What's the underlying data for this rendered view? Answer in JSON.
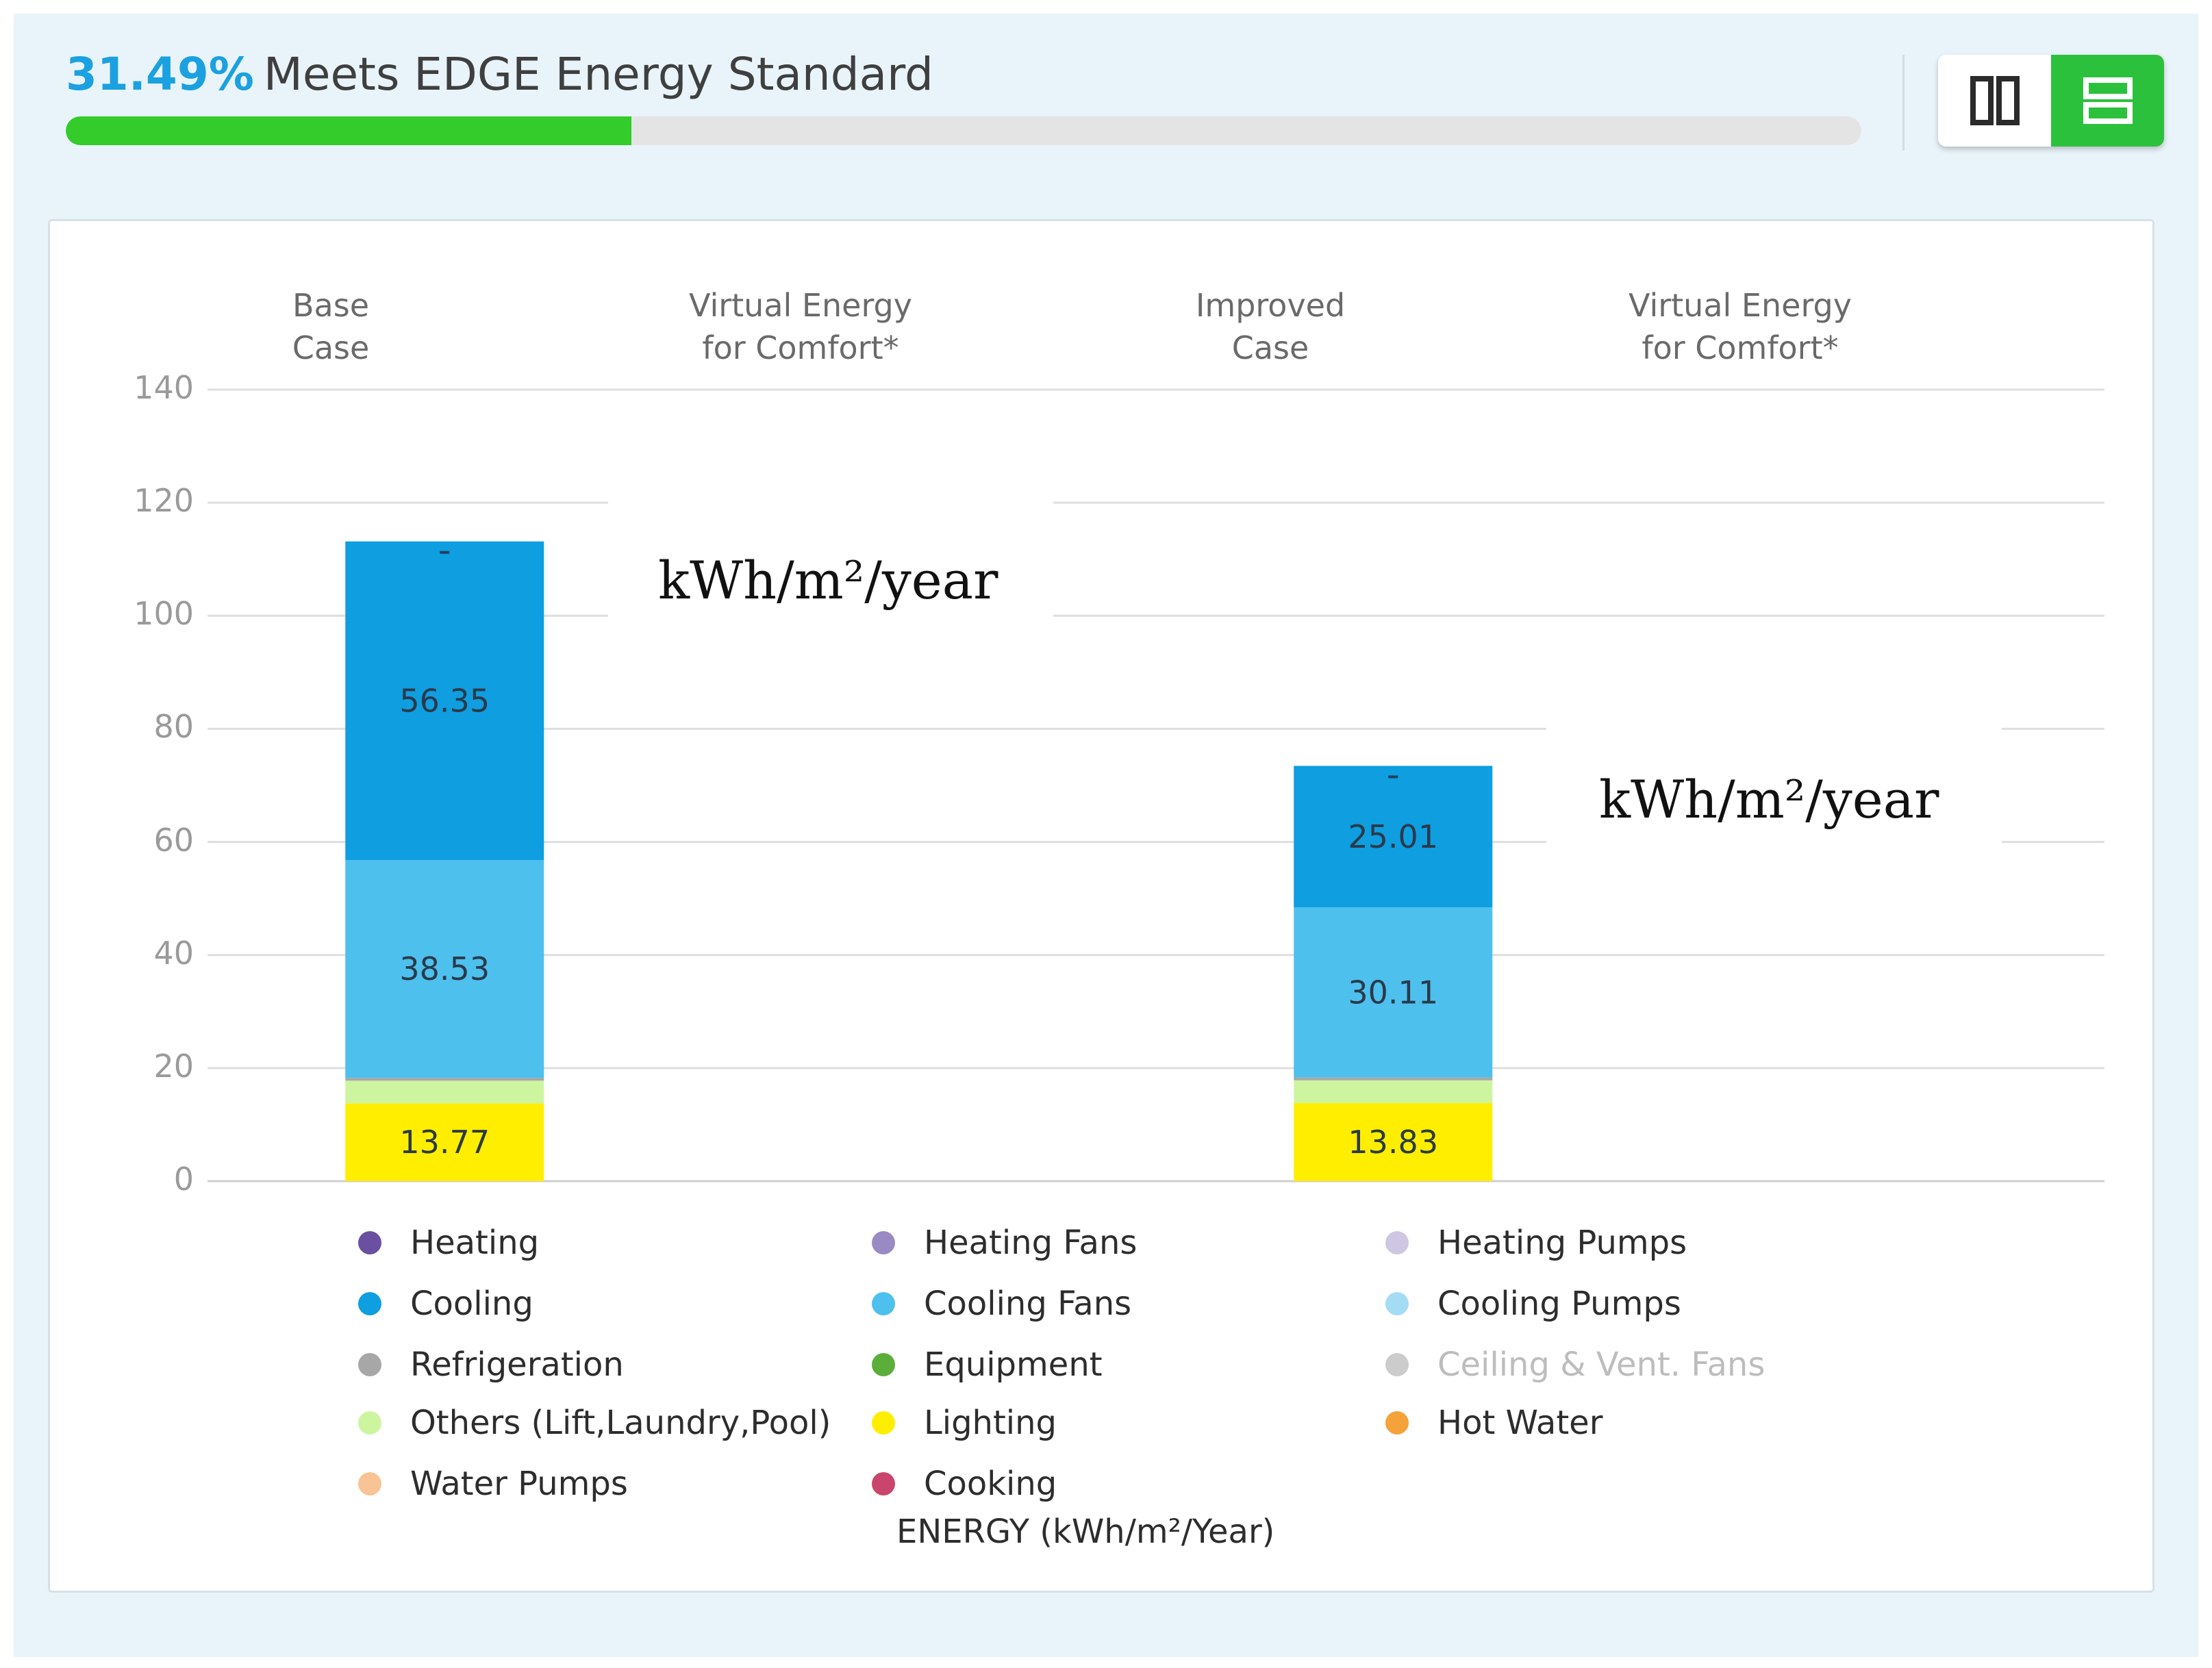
{
  "header": {
    "percent": "31.49%",
    "title": "Meets EDGE Energy Standard",
    "progress": 0.3149,
    "progress_color": "#33cc2a",
    "toggle_left_icon": "columns-icon",
    "toggle_right_icon": "rows-icon",
    "toggle_active_color": "#2cc13c"
  },
  "chart_data": {
    "type": "bar",
    "stacked": true,
    "column_headers": [
      "Base\nCase",
      "Virtual Energy\nfor Comfort*",
      "Improved\nCase",
      "Virtual Energy\nfor Comfort*"
    ],
    "ylim": [
      0,
      140
    ],
    "yticks": [
      0,
      20,
      40,
      60,
      80,
      100,
      120,
      140
    ],
    "grid": true,
    "bars": [
      {
        "column": 0,
        "segments": [
          {
            "series": "Lighting",
            "value": 13.77,
            "label": "13.77"
          },
          {
            "series": "Others (Lift,Laundry,Pool)",
            "value": 4.0,
            "label": ""
          },
          {
            "series": "Refrigeration",
            "value": 0.5,
            "label": ""
          },
          {
            "series": "Cooling Fans",
            "value": 38.53,
            "label": "38.53"
          },
          {
            "series": "Cooling",
            "value": 56.35,
            "label": "56.35"
          }
        ]
      },
      {
        "column": 2,
        "segments": [
          {
            "series": "Lighting",
            "value": 13.83,
            "label": "13.83"
          },
          {
            "series": "Others (Lift,Laundry,Pool)",
            "value": 4.0,
            "label": ""
          },
          {
            "series": "Refrigeration",
            "value": 0.5,
            "label": ""
          },
          {
            "series": "Cooling Fans",
            "value": 30.11,
            "label": "30.11"
          },
          {
            "series": "Cooling",
            "value": 25.01,
            "label": "25.01"
          }
        ]
      }
    ],
    "annotations": [
      "kWh/m²/year",
      "kWh/m²/year"
    ],
    "legend": [
      {
        "name": "Heating",
        "color": "#6b4fa0"
      },
      {
        "name": "Heating Fans",
        "color": "#9a8ac4"
      },
      {
        "name": "Heating Pumps",
        "color": "#cfc6e3"
      },
      {
        "name": "Cooling",
        "color": "#0f9ee0"
      },
      {
        "name": "Cooling Fans",
        "color": "#4ec0ee"
      },
      {
        "name": "Cooling Pumps",
        "color": "#a5dcf5"
      },
      {
        "name": "Refrigeration",
        "color": "#a7a7a7"
      },
      {
        "name": "Equipment",
        "color": "#5cae3a"
      },
      {
        "name": "Ceiling & Vent. Fans",
        "color": "#cccccc"
      },
      {
        "name": "Others (Lift,Laundry,Pool)",
        "color": "#cdf5a0"
      },
      {
        "name": "Lighting",
        "color": "#ffee00"
      },
      {
        "name": "Hot Water",
        "color": "#f5a23a"
      },
      {
        "name": "Water Pumps",
        "color": "#f8c495"
      },
      {
        "name": "Cooking",
        "color": "#c9456d"
      }
    ],
    "legend_placement": "bottom",
    "xlabel": "ENERGY (kWh/m²/Year)"
  }
}
